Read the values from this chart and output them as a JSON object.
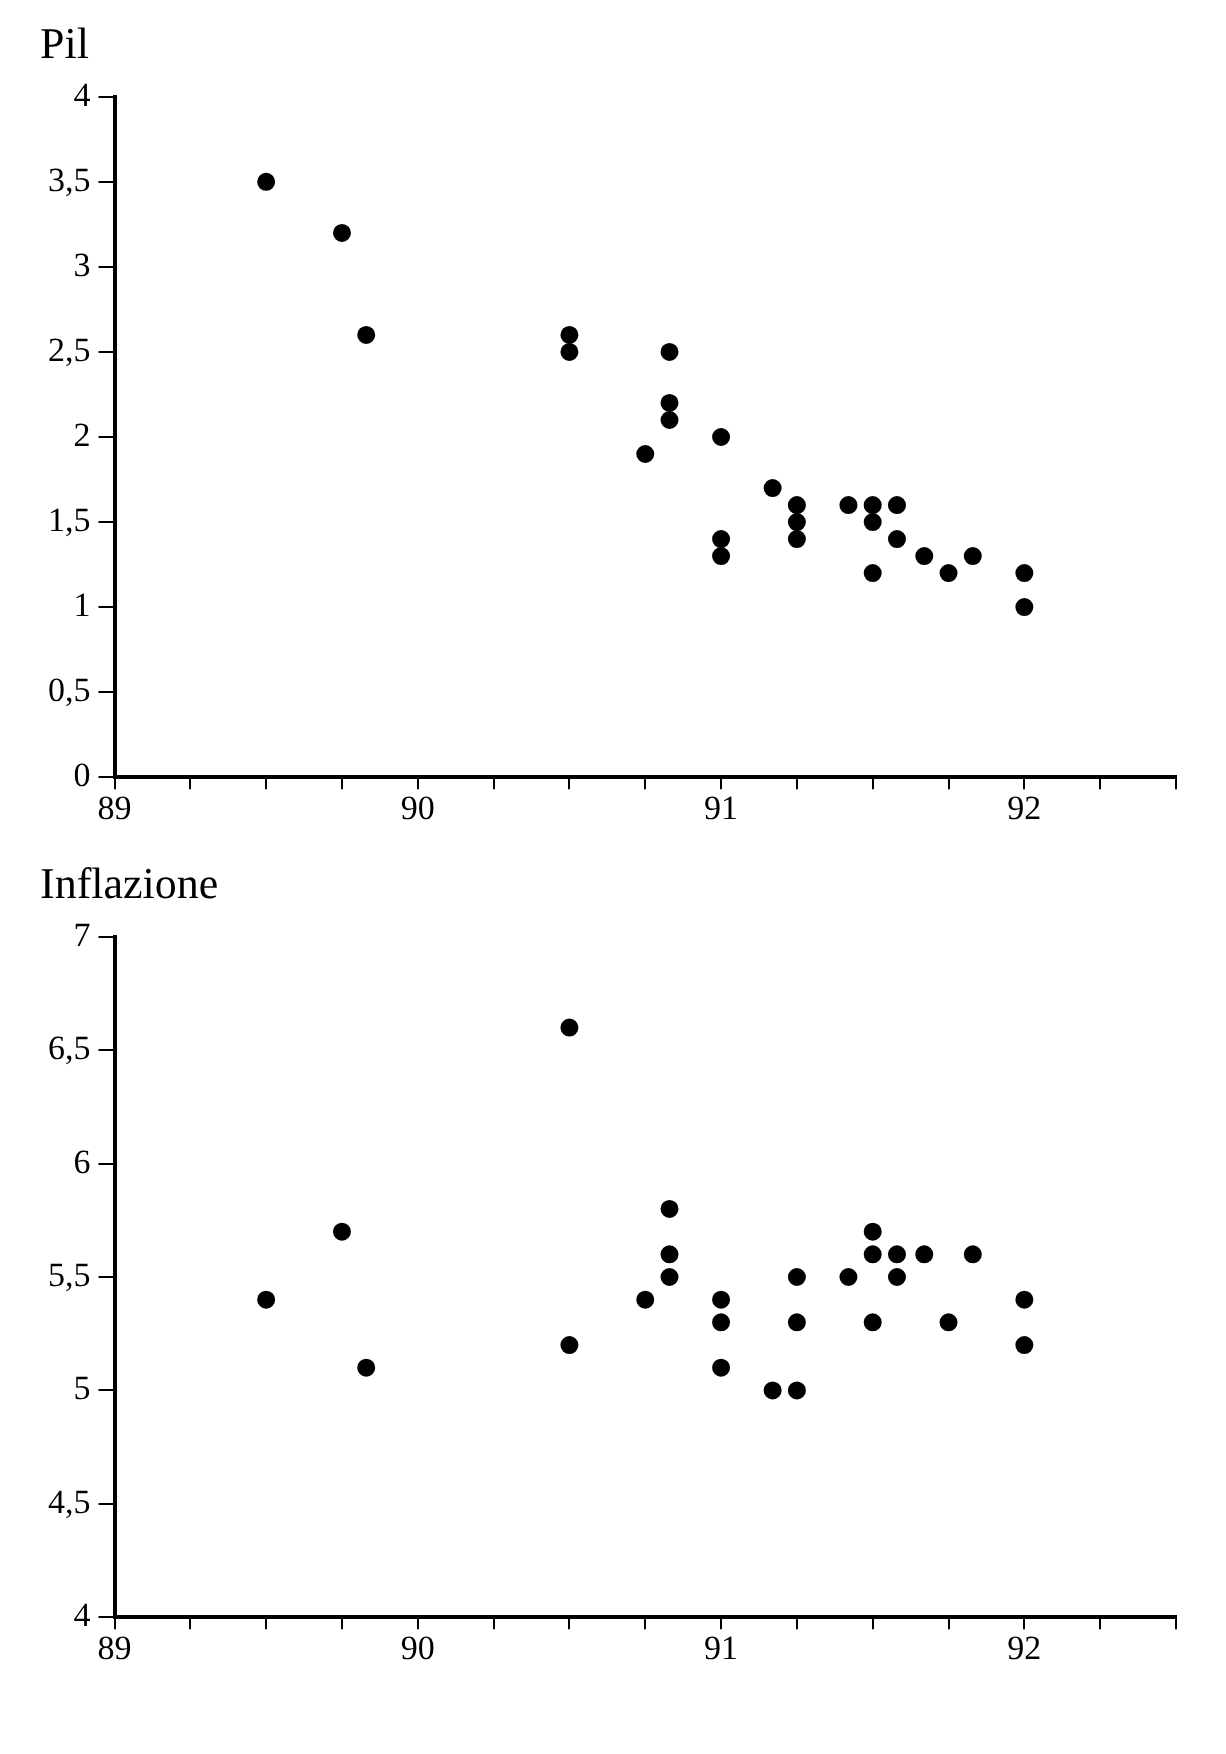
{
  "chart_data": [
    {
      "type": "scatter",
      "ylabel": "Pil",
      "marker": "circle",
      "grid": false,
      "legend": false,
      "xlim": [
        89,
        92.5
      ],
      "xticks": [
        89,
        {
          "value": 89.25,
          "label": null
        },
        {
          "value": 89.5,
          "label": null
        },
        {
          "value": 89.75,
          "label": null
        },
        90,
        {
          "value": 90.25,
          "label": null
        },
        {
          "value": 90.5,
          "label": null
        },
        {
          "value": 90.75,
          "label": null
        },
        91,
        {
          "value": 91.25,
          "label": null
        },
        {
          "value": 91.5,
          "label": null
        },
        {
          "value": 91.75,
          "label": null
        },
        92,
        {
          "value": 92.25,
          "label": null
        },
        {
          "value": 92.5,
          "label": null
        }
      ],
      "ylim": [
        0,
        4
      ],
      "yticks": [
        0,
        {
          "value": 0.5,
          "label": "0,5"
        },
        1,
        {
          "value": 1.5,
          "label": "1,5"
        },
        2,
        {
          "value": 2.5,
          "label": "2,5"
        },
        3,
        {
          "value": 3.5,
          "label": "3,5"
        },
        4
      ],
      "series": [
        {
          "color": "#000000",
          "x": [
            89.5,
            89.75,
            89.83,
            90.5,
            90.5,
            90.75,
            90.83,
            90.83,
            90.83,
            91,
            91,
            91,
            91.17,
            91.25,
            91.25,
            91.25,
            91.42,
            91.5,
            91.5,
            91.5,
            91.58,
            91.58,
            91.67,
            91.75,
            91.83,
            92,
            92
          ],
          "values": [
            3.5,
            3.2,
            2.6,
            2.6,
            2.5,
            1.9,
            2.5,
            2.2,
            2.1,
            2.0,
            1.4,
            1.3,
            1.7,
            1.6,
            1.5,
            1.4,
            1.6,
            1.6,
            1.5,
            1.2,
            1.6,
            1.4,
            1.3,
            1.2,
            1.3,
            1.2,
            1.0
          ]
        }
      ]
    },
    {
      "type": "scatter",
      "ylabel": "Inflazione",
      "marker": "circle",
      "grid": false,
      "legend": false,
      "xlim": [
        89,
        92.5
      ],
      "xticks": [
        89,
        {
          "value": 89.25,
          "label": null
        },
        {
          "value": 89.5,
          "label": null
        },
        {
          "value": 89.75,
          "label": null
        },
        90,
        {
          "value": 90.25,
          "label": null
        },
        {
          "value": 90.5,
          "label": null
        },
        {
          "value": 90.75,
          "label": null
        },
        91,
        {
          "value": 91.25,
          "label": null
        },
        {
          "value": 91.5,
          "label": null
        },
        {
          "value": 91.75,
          "label": null
        },
        92,
        {
          "value": 92.25,
          "label": null
        },
        {
          "value": 92.5,
          "label": null
        }
      ],
      "ylim": [
        4,
        7
      ],
      "yticks": [
        4,
        {
          "value": 4.5,
          "label": "4,5"
        },
        5,
        {
          "value": 5.5,
          "label": "5,5"
        },
        6,
        {
          "value": 6.5,
          "label": "6,5"
        },
        7
      ],
      "series": [
        {
          "color": "#000000",
          "x": [
            89.5,
            89.75,
            89.83,
            90.5,
            90.5,
            90.75,
            90.83,
            90.83,
            90.83,
            91,
            91,
            91,
            91.17,
            91.25,
            91.25,
            91.25,
            91.42,
            91.5,
            91.5,
            91.5,
            91.58,
            91.58,
            91.67,
            91.75,
            91.83,
            92,
            92
          ],
          "values": [
            5.4,
            5.7,
            5.1,
            6.6,
            5.2,
            5.4,
            5.8,
            5.6,
            5.5,
            5.4,
            5.3,
            5.1,
            5.0,
            5.5,
            5.3,
            5.0,
            5.5,
            5.7,
            5.6,
            5.3,
            5.6,
            5.5,
            5.6,
            5.3,
            5.6,
            5.4,
            5.2
          ]
        }
      ]
    }
  ]
}
